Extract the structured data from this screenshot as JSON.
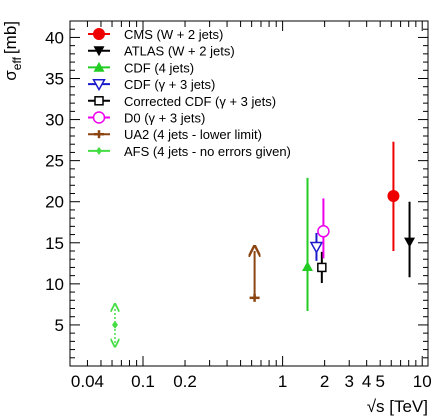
{
  "chart_data": {
    "type": "scatter",
    "title": "",
    "xlabel": "√s [TeV]",
    "ylabel_main": "σ",
    "ylabel_sub": "eff",
    "ylabel_unit": "[mb]",
    "xscale": "log",
    "xlim": [
      0.03,
      11
    ],
    "ylim": [
      0,
      42
    ],
    "grid": false,
    "legend_position": "top-left",
    "x_ticks": [
      {
        "value": 0.04,
        "label": "0.04"
      },
      {
        "value": 0.1,
        "label": "0.1"
      },
      {
        "value": 0.2,
        "label": "0.2"
      },
      {
        "value": 1,
        "label": "1"
      },
      {
        "value": 2,
        "label": "2"
      },
      {
        "value": 3,
        "label": "3"
      },
      {
        "value": 4,
        "label": "4"
      },
      {
        "value": 5,
        "label": "5"
      },
      {
        "value": 10,
        "label": "10"
      }
    ],
    "y_ticks": [
      {
        "value": 5,
        "label": "5"
      },
      {
        "value": 10,
        "label": "10"
      },
      {
        "value": 15,
        "label": "15"
      },
      {
        "value": 20,
        "label": "20"
      },
      {
        "value": 25,
        "label": "25"
      },
      {
        "value": 30,
        "label": "30"
      },
      {
        "value": 35,
        "label": "35"
      },
      {
        "value": 40,
        "label": "40"
      }
    ],
    "series": [
      {
        "name": "CMS (W + 2 jets)",
        "color": "#ee0000",
        "marker": "circle-filled",
        "x": 7,
        "y": 20.7,
        "y_low": 14,
        "y_high": 27.3,
        "x_offset": -0.02
      },
      {
        "name": "ATLAS (W + 2 jets)",
        "color": "#000000",
        "marker": "triangle-down-filled",
        "x": 7,
        "y": 15.1,
        "y_low": 10.8,
        "y_high": 20.0,
        "x_offset": 0.025
      },
      {
        "name": "CDF (4 jets)",
        "color": "#22cc22",
        "marker": "triangle-up-filled",
        "x": 1.8,
        "y": 12.1,
        "y_low": 6.7,
        "y_high": 22.9,
        "x_offset": -0.03
      },
      {
        "name": "CDF (γ + 3 jets)",
        "color": "#1a1acc",
        "marker": "triangle-down-open",
        "x": 1.8,
        "y": 14.5,
        "y_low": 12.8,
        "y_high": 16.2,
        "x_offset": -0.005
      },
      {
        "name": "Corrected CDF (γ + 3 jets)",
        "color": "#000000",
        "marker": "square-open",
        "x": 1.8,
        "y": 12.0,
        "y_low": 10.1,
        "y_high": 13.9,
        "x_offset": 0.01
      },
      {
        "name": "D0 (γ + 3 jets)",
        "color": "#ee00ee",
        "marker": "circle-open",
        "x": 1.96,
        "y": 16.4,
        "y_low": 13.1,
        "y_high": 20.4,
        "x_offset": 0.0
      },
      {
        "name": "UA2 (4 jets - lower limit)",
        "color": "#8b4513",
        "marker": "plus",
        "x": 0.63,
        "y": 8.3,
        "lower_limit": true,
        "arrow_to": 14.0,
        "x_offset": 0.0
      },
      {
        "name": "AFS (4 jets - no errors given)",
        "color": "#44dd44",
        "marker": "diamond-filled",
        "x": 0.063,
        "y": 5.0,
        "double_arrow": [
          2.8,
          7.1
        ],
        "x_offset": 0.0
      }
    ]
  }
}
